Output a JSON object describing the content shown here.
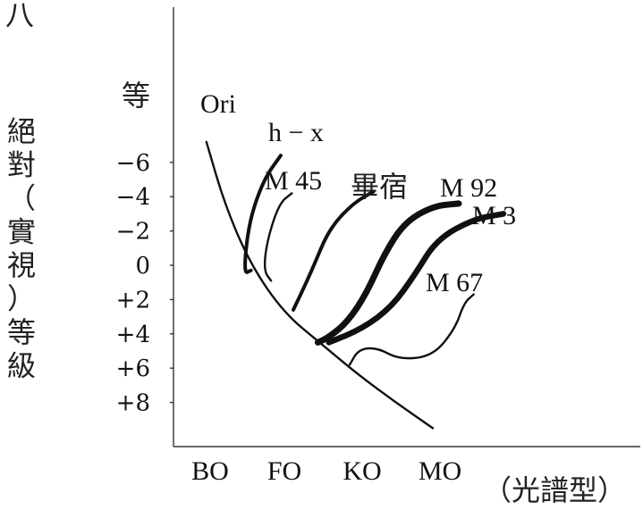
{
  "page_marker": "八",
  "chart_data": {
    "type": "line",
    "title": "",
    "xlabel": "（光譜型）",
    "ylabel": "絕對（實視）等級",
    "ylabel_top": "等",
    "x_ticks": [
      "BO",
      "FO",
      "KO",
      "MO"
    ],
    "y_ticks": [
      "-6",
      "-4",
      "-2",
      "0",
      "+2",
      "+4",
      "+6",
      "+8"
    ],
    "y_tick_labels": [
      "−6",
      "−4",
      "−2",
      "0",
      "+2",
      "+4",
      "+6",
      "+8"
    ],
    "xlim": [
      -0.6,
      4.6
    ],
    "ylim": [
      -10.5,
      11
    ],
    "grid": false,
    "legend": "none",
    "series": [
      {
        "name": "Ori",
        "style": "solid",
        "points": [
          [
            -0.05,
            -7.2
          ],
          [
            0.2,
            -3.5
          ],
          [
            0.55,
            0.0
          ],
          [
            1.0,
            2.8
          ],
          [
            1.5,
            4.6
          ],
          [
            2.0,
            6.4
          ],
          [
            2.5,
            8.0
          ],
          [
            3.0,
            9.5
          ]
        ]
      },
      {
        "name": "h − x",
        "style": "thick",
        "points": [
          [
            0.95,
            -6.4
          ],
          [
            0.72,
            -5.0
          ],
          [
            0.52,
            -2.5
          ],
          [
            0.45,
            0.5
          ],
          [
            0.55,
            0.3
          ]
        ]
      },
      {
        "name": "M 45",
        "style": "solid",
        "points": [
          [
            1.1,
            -4.2
          ],
          [
            0.93,
            -3.6
          ],
          [
            0.77,
            -1.5
          ],
          [
            0.72,
            0.3
          ],
          [
            0.82,
            0.9
          ]
        ]
      },
      {
        "name": "畢宿",
        "style": "thick",
        "points": [
          [
            2.2,
            -4.3
          ],
          [
            1.92,
            -3.6
          ],
          [
            1.6,
            -2.1
          ],
          [
            1.38,
            0.2
          ],
          [
            1.22,
            1.7
          ],
          [
            1.12,
            2.6
          ]
        ]
      },
      {
        "name": "M 92",
        "style": "double-hatched",
        "points": [
          [
            3.35,
            -3.6
          ],
          [
            3.0,
            -3.45
          ],
          [
            2.62,
            -2.5
          ],
          [
            2.35,
            -0.7
          ],
          [
            2.1,
            1.7
          ],
          [
            1.85,
            3.3
          ],
          [
            1.6,
            4.2
          ],
          [
            1.45,
            4.5
          ]
        ]
      },
      {
        "name": "M 3",
        "style": "double",
        "points": [
          [
            3.95,
            -3.0
          ],
          [
            3.55,
            -2.7
          ],
          [
            3.05,
            -1.5
          ],
          [
            2.75,
            0.6
          ],
          [
            2.45,
            2.4
          ],
          [
            2.05,
            3.7
          ],
          [
            1.6,
            4.5
          ]
        ]
      },
      {
        "name": "M 67",
        "style": "solid",
        "points": [
          [
            3.55,
            1.7
          ],
          [
            3.42,
            2.2
          ],
          [
            3.3,
            3.7
          ],
          [
            3.0,
            5.3
          ],
          [
            2.55,
            5.5
          ],
          [
            2.25,
            4.8
          ],
          [
            2.0,
            4.9
          ],
          [
            1.88,
            5.8
          ]
        ]
      }
    ]
  }
}
